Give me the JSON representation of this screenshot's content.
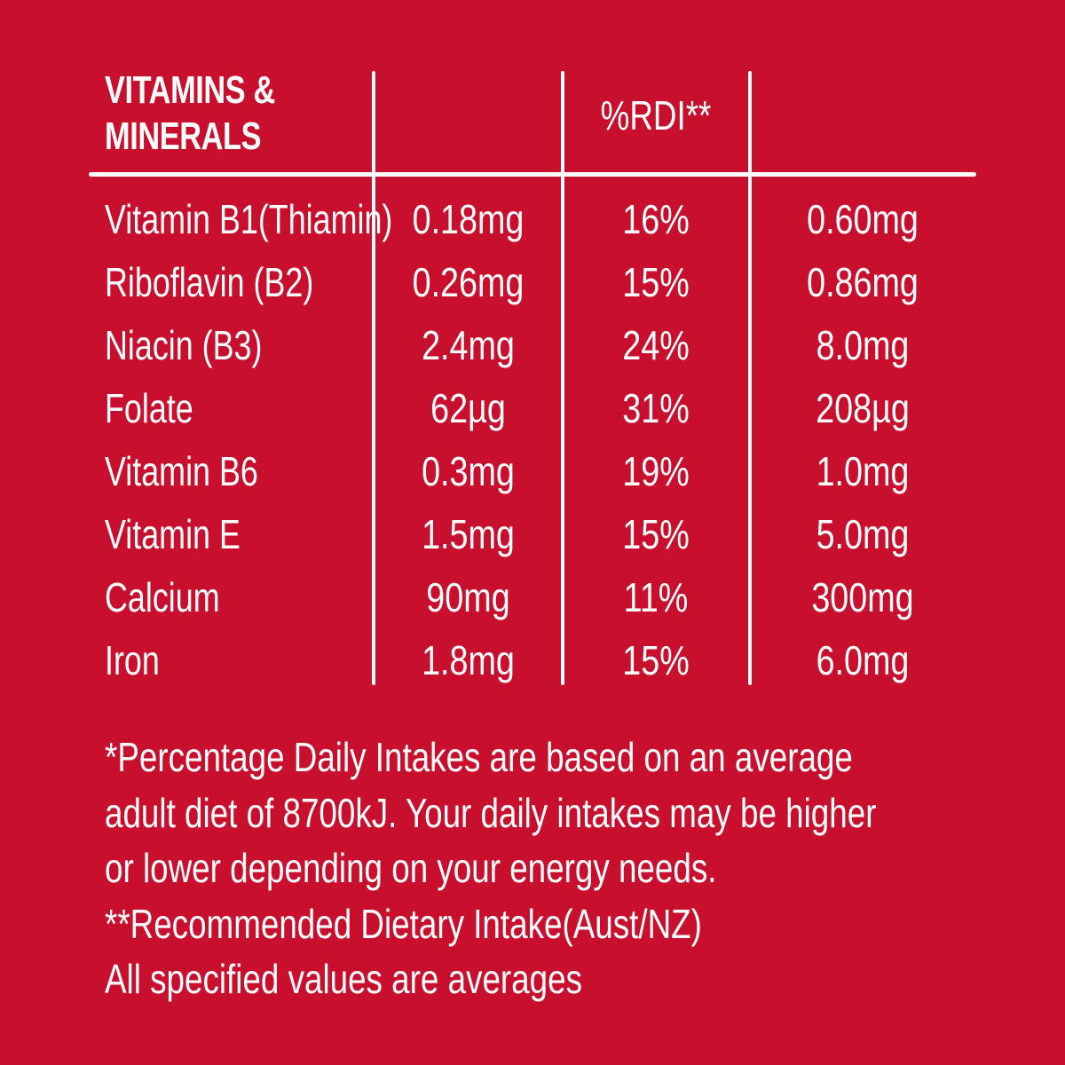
{
  "colors": {
    "background": "#c8102e",
    "text": "#ffffff"
  },
  "table": {
    "header": {
      "title_line1": "VITAMINS &",
      "title_line2": "MINERALS",
      "rdi_label": "%RDI**"
    },
    "rows": [
      {
        "name": "Vitamin B1(Thiamin)",
        "amount": "0.18mg",
        "percent": "16%",
        "rdi_amount": "0.60mg"
      },
      {
        "name": "Riboflavin (B2)",
        "amount": "0.26mg",
        "percent": "15%",
        "rdi_amount": "0.86mg"
      },
      {
        "name": "Niacin (B3)",
        "amount": "2.4mg",
        "percent": "24%",
        "rdi_amount": "8.0mg"
      },
      {
        "name": "Folate",
        "amount": "62µg",
        "percent": "31%",
        "rdi_amount": "208µg"
      },
      {
        "name": "Vitamin B6",
        "amount": "0.3mg",
        "percent": "19%",
        "rdi_amount": "1.0mg"
      },
      {
        "name": "Vitamin E",
        "amount": "1.5mg",
        "percent": "15%",
        "rdi_amount": "5.0mg"
      },
      {
        "name": "Calcium",
        "amount": "90mg",
        "percent": "11%",
        "rdi_amount": "300mg"
      },
      {
        "name": "Iron",
        "amount": "1.8mg",
        "percent": "15%",
        "rdi_amount": "6.0mg"
      }
    ]
  },
  "footnotes": [
    "*Percentage Daily Intakes are based on an average",
    "adult diet of 8700kJ. Your daily intakes may be higher",
    "or lower depending on your energy needs.",
    "**Recommended Dietary Intake(Aust/NZ)",
    "All specified values are averages"
  ]
}
